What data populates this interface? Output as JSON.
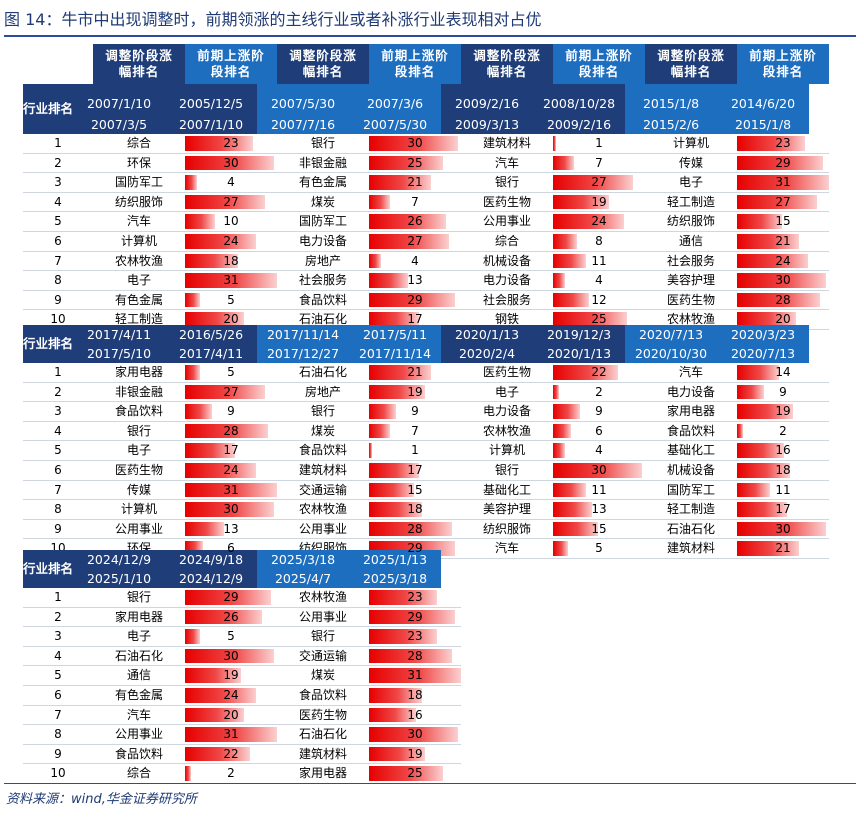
{
  "title": "图 14：牛市中出现调整时，前期领涨的主线行业或者补涨行业表现相对占优",
  "source": "资料来源：wind,华金证券研究所",
  "header_labels": {
    "adj": "调整阶段涨幅排名",
    "pre": "前期上涨阶段排名",
    "rank": "行业排名"
  },
  "colors": {
    "dark_header": "#1f3d78",
    "bright_header": "#1e6ec0",
    "bar": "#e60000",
    "title": "#1f3a75"
  },
  "max_value": 31,
  "rank_labels": [
    "1",
    "2",
    "3",
    "4",
    "5",
    "6",
    "7",
    "8",
    "9",
    "10"
  ],
  "blocks": [
    {
      "periods": [
        {
          "adj_start": "2007/1/10",
          "adj_end": "2007/3/5",
          "pre_start": "2005/12/5",
          "pre_end": "2007/1/10",
          "industries": [
            "综合",
            "环保",
            "国防军工",
            "纺织服饰",
            "汽车",
            "计算机",
            "农林牧渔",
            "电子",
            "有色金属",
            "轻工制造"
          ],
          "values": [
            23,
            30,
            4,
            27,
            10,
            24,
            18,
            31,
            5,
            20
          ]
        },
        {
          "adj_start": "2007/5/30",
          "adj_end": "2007/7/16",
          "pre_start": "2007/3/6",
          "pre_end": "2007/5/30",
          "industries": [
            "银行",
            "非银金融",
            "有色金属",
            "煤炭",
            "国防军工",
            "电力设备",
            "房地产",
            "社会服务",
            "食品饮料",
            "石油石化"
          ],
          "values": [
            30,
            25,
            21,
            7,
            26,
            27,
            4,
            13,
            29,
            17
          ]
        },
        {
          "adj_start": "2009/2/16",
          "adj_end": "2009/3/13",
          "pre_start": "2008/10/28",
          "pre_end": "2009/2/16",
          "industries": [
            "建筑材料",
            "汽车",
            "银行",
            "医药生物",
            "公用事业",
            "综合",
            "机械设备",
            "电力设备",
            "社会服务",
            "钢铁"
          ],
          "values": [
            1,
            7,
            27,
            19,
            24,
            8,
            11,
            4,
            12,
            25
          ]
        },
        {
          "adj_start": "2015/1/8",
          "adj_end": "2015/2/6",
          "pre_start": "2014/6/20",
          "pre_end": "2015/1/8",
          "industries": [
            "计算机",
            "传媒",
            "电子",
            "轻工制造",
            "纺织服饰",
            "通信",
            "社会服务",
            "美容护理",
            "医药生物",
            "农林牧渔"
          ],
          "values": [
            23,
            29,
            31,
            27,
            15,
            21,
            24,
            30,
            28,
            20
          ]
        }
      ]
    },
    {
      "periods": [
        {
          "adj_start": "2017/4/11",
          "adj_end": "2017/5/10",
          "pre_start": "2016/5/26",
          "pre_end": "2017/4/11",
          "industries": [
            "家用电器",
            "非银金融",
            "食品饮料",
            "银行",
            "电子",
            "医药生物",
            "传媒",
            "计算机",
            "公用事业",
            "环保"
          ],
          "values": [
            5,
            27,
            9,
            28,
            17,
            24,
            31,
            30,
            13,
            6
          ]
        },
        {
          "adj_start": "2017/11/14",
          "adj_end": "2017/12/27",
          "pre_start": "2017/5/11",
          "pre_end": "2017/11/14",
          "industries": [
            "石油石化",
            "房地产",
            "银行",
            "煤炭",
            "食品饮料",
            "建筑材料",
            "交通运输",
            "农林牧渔",
            "公用事业",
            "纺织服饰"
          ],
          "values": [
            21,
            19,
            9,
            7,
            1,
            17,
            15,
            18,
            28,
            29
          ]
        },
        {
          "adj_start": "2020/1/13",
          "adj_end": "2020/2/4",
          "pre_start": "2019/12/3",
          "pre_end": "2020/1/13",
          "industries": [
            "医药生物",
            "电子",
            "电力设备",
            "农林牧渔",
            "计算机",
            "银行",
            "基础化工",
            "美容护理",
            "纺织服饰",
            "汽车"
          ],
          "values": [
            22,
            2,
            9,
            6,
            4,
            30,
            11,
            13,
            15,
            5
          ]
        },
        {
          "adj_start": "2020/7/13",
          "adj_end": "2020/10/30",
          "pre_start": "2020/3/23",
          "pre_end": "2020/7/13",
          "industries": [
            "汽车",
            "电力设备",
            "家用电器",
            "食品饮料",
            "基础化工",
            "机械设备",
            "国防军工",
            "轻工制造",
            "石油石化",
            "建筑材料"
          ],
          "values": [
            14,
            9,
            19,
            2,
            16,
            18,
            11,
            17,
            30,
            21
          ]
        }
      ]
    },
    {
      "periods": [
        {
          "adj_start": "2024/12/9",
          "adj_end": "2025/1/10",
          "pre_start": "2024/9/18",
          "pre_end": "2024/12/9",
          "industries": [
            "银行",
            "家用电器",
            "电子",
            "石油石化",
            "通信",
            "有色金属",
            "汽车",
            "公用事业",
            "食品饮料",
            "综合"
          ],
          "values": [
            29,
            26,
            5,
            30,
            19,
            24,
            20,
            31,
            22,
            2
          ]
        },
        {
          "adj_start": "2025/3/18",
          "adj_end": "2025/4/7",
          "pre_start": "2025/1/13",
          "pre_end": "2025/3/18",
          "industries": [
            "农林牧渔",
            "公用事业",
            "银行",
            "交通运输",
            "煤炭",
            "食品饮料",
            "医药生物",
            "石油石化",
            "建筑材料",
            "家用电器"
          ],
          "values": [
            23,
            29,
            23,
            28,
            31,
            18,
            16,
            30,
            19,
            25
          ]
        }
      ]
    }
  ]
}
